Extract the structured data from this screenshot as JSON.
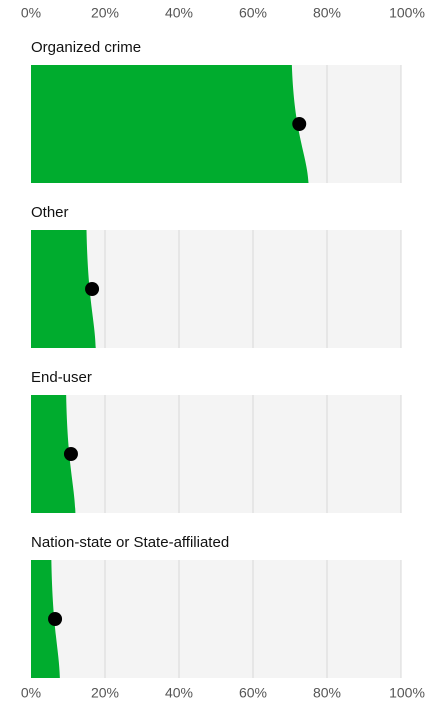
{
  "chart_data": {
    "type": "interval",
    "categories": [
      "Organized crime",
      "Other",
      "End-user",
      "Nation-state or State-affiliated"
    ],
    "values": [
      72.5,
      16.5,
      10.8,
      6.5
    ],
    "low": [
      70.5,
      15,
      9.5,
      5.5
    ],
    "high": [
      75,
      17.5,
      12,
      7.8
    ],
    "color": "#00ac2e",
    "xlim": [
      0,
      100
    ],
    "xticks": [
      {
        "value": 0,
        "label": "0%"
      },
      {
        "value": 20,
        "label": "20%"
      },
      {
        "value": 40,
        "label": "40%"
      },
      {
        "value": 60,
        "label": "60%"
      },
      {
        "value": 80,
        "label": "80%"
      },
      {
        "value": 100,
        "label": "100%"
      }
    ],
    "grid": true
  }
}
